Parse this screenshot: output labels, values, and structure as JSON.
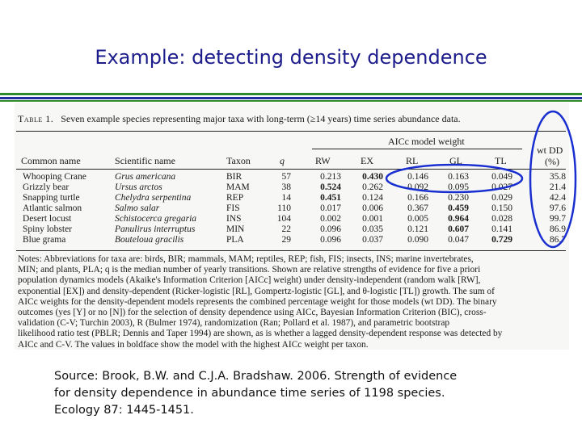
{
  "slide": {
    "title": "Example:  detecting density dependence",
    "colors": {
      "title": "#1c1c8c",
      "rule_green": "#2e8b2e",
      "rule_blue": "#1f2f9f",
      "annotation": "#1a2fd0"
    }
  },
  "table": {
    "caption_label": "Table 1.",
    "caption_text": "Seven example species representing major taxa with long-term (≥14 years) time series abundance data.",
    "group_header": "AICc model weight",
    "wt_header_line1": "wt DD",
    "wt_header_line2": "(%)",
    "columns": [
      "Common name",
      "Scientific name",
      "Taxon",
      "q",
      "RW",
      "EX",
      "RL",
      "GL",
      "TL"
    ],
    "rows": [
      {
        "name": "Whooping Crane",
        "sci": "Grus americana",
        "taxon": "BIR",
        "q": "57",
        "rw": "0.213",
        "ex": "0.430",
        "rl": "0.146",
        "gl": "0.163",
        "tl": "0.049",
        "wt": "35.8"
      },
      {
        "name": "Grizzly bear",
        "sci": "Ursus arctos",
        "taxon": "MAM",
        "q": "38",
        "rw": "0.524",
        "ex": "0.262",
        "rl": "0.092",
        "gl": "0.095",
        "tl": "0.027",
        "wt": "21.4"
      },
      {
        "name": "Snapping turtle",
        "sci": "Chelydra serpentina",
        "taxon": "REP",
        "q": "14",
        "rw": "0.451",
        "ex": "0.124",
        "rl": "0.166",
        "gl": "0.230",
        "tl": "0.029",
        "wt": "42.4"
      },
      {
        "name": "Atlantic salmon",
        "sci": "Salmo salar",
        "taxon": "FIS",
        "q": "110",
        "rw": "0.017",
        "ex": "0.006",
        "rl": "0.367",
        "gl": "0.459",
        "tl": "0.150",
        "wt": "97.6"
      },
      {
        "name": "Desert locust",
        "sci": "Schistocerca gregaria",
        "taxon": "INS",
        "q": "104",
        "rw": "0.002",
        "ex": "0.001",
        "rl": "0.005",
        "gl": "0.964",
        "tl": "0.028",
        "wt": "99.7"
      },
      {
        "name": "Spiny lobster",
        "sci": "Panulirus interruptus",
        "taxon": "MIN",
        "q": "22",
        "rw": "0.096",
        "ex": "0.035",
        "rl": "0.121",
        "gl": "0.607",
        "tl": "0.141",
        "wt": "86.9"
      },
      {
        "name": "Blue grama",
        "sci": "Bouteloua gracilis",
        "taxon": "PLA",
        "q": "29",
        "rw": "0.096",
        "ex": "0.037",
        "rl": "0.090",
        "gl": "0.047",
        "tl": "0.729",
        "wt": "86.7"
      }
    ],
    "bold_cells": [
      [
        0,
        "ex"
      ],
      [
        1,
        "rw"
      ],
      [
        2,
        "rw"
      ],
      [
        3,
        "gl"
      ],
      [
        4,
        "gl"
      ],
      [
        5,
        "gl"
      ],
      [
        6,
        "tl"
      ]
    ],
    "notes": [
      "Notes: Abbreviations for taxa are: birds, BIR; mammals, MAM; reptiles, REP; fish, FIS; insects, INS; marine invertebrates,",
      "MIN; and plants, PLA; q is the median number of yearly transitions. Shown are relative strengths of evidence for five a priori",
      "population dynamics models (Akaike's Information Criterion [AICc] weight) under density-independent (random walk [RW],",
      "exponential [EX]) and density-dependent (Ricker-logistic [RL], Gompertz-logistic [GL], and θ-logistic [TL]) growth. The sum of",
      "AICc weights for the density-dependent models represents the combined percentage weight for those models (wt DD). The binary",
      "outcomes (yes [Y] or no [N]) for the selection of density dependence using AICc, Bayesian Information Criterion (BIC), cross-",
      "validation (C-V; Turchin 2003), R (Bulmer 1974), randomization (Ran; Pollard et al. 1987), and parametric bootstrap",
      "likelihood ratio test (PBLR; Dennis and Taper 1994) are shown, as is whether a lagged density-dependent response was detected by",
      "AICc and C-V. The values in boldface show the model with the highest AICc weight per taxon."
    ]
  },
  "source": {
    "line1": "Source:  Brook, B.W. and C.J.A. Bradshaw.  2006.  Strength of evidence",
    "line2": "for density dependence in abundance time series of 1198 species.",
    "line3": "Ecology 87: 1445-1451."
  }
}
